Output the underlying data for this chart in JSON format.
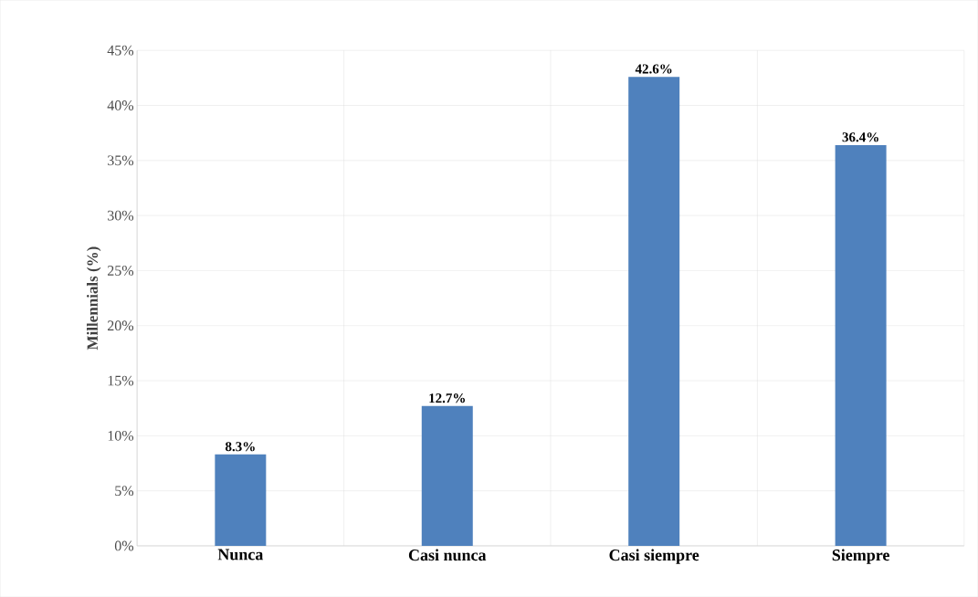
{
  "chart_data": {
    "type": "bar",
    "ylabel": "Millennials (%)",
    "categories": [
      "Nunca",
      "Casi nunca",
      "Casi siempre",
      "Siempre"
    ],
    "values": [
      8.3,
      12.7,
      42.6,
      36.4
    ],
    "value_labels": [
      "8.3%",
      "12.7%",
      "42.6%",
      "36.4%"
    ],
    "color": "#4f81bd",
    "ylim": [
      0,
      45
    ],
    "yticks": [
      {
        "value": 0,
        "label": "0%"
      },
      {
        "value": 5,
        "label": "5%"
      },
      {
        "value": 10,
        "label": "10%"
      },
      {
        "value": 15,
        "label": "15%"
      },
      {
        "value": 20,
        "label": "20%"
      },
      {
        "value": 25,
        "label": "25%"
      },
      {
        "value": 30,
        "label": "30%"
      },
      {
        "value": 35,
        "label": "35%"
      },
      {
        "value": 40,
        "label": "40%"
      },
      {
        "value": 45,
        "label": "45%"
      }
    ],
    "grid": true
  }
}
